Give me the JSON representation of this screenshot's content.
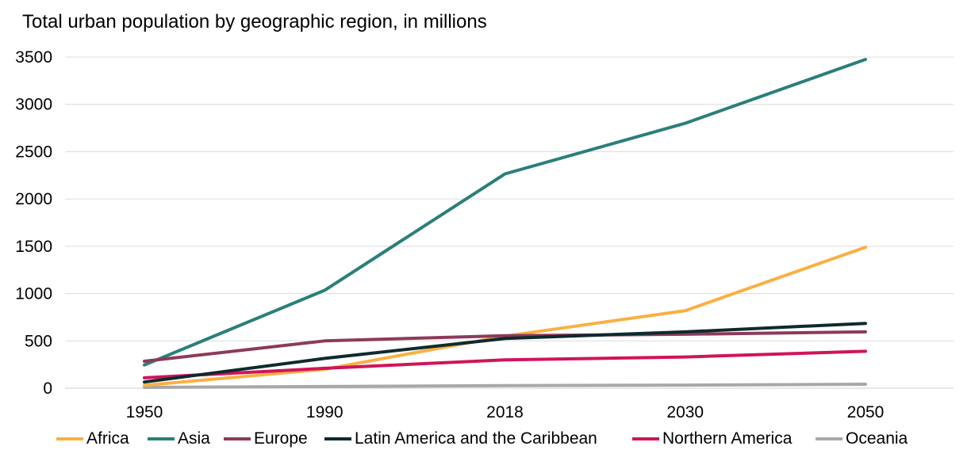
{
  "chart_data": {
    "type": "line",
    "title": "Total urban population by geographic region, in millions",
    "xlabel": "",
    "ylabel": "",
    "categories": [
      "1950",
      "1990",
      "2018",
      "2030",
      "2050"
    ],
    "ylim": [
      0,
      3500
    ],
    "yticks": [
      "0",
      "500",
      "1000",
      "1500",
      "2000",
      "2500",
      "3000",
      "3500"
    ],
    "grid": true,
    "legend_position": "bottom",
    "series": [
      {
        "name": "Africa",
        "color": "#F9B043",
        "values": [
          30,
          200,
          550,
          820,
          1490
        ]
      },
      {
        "name": "Asia",
        "color": "#2A7F79",
        "values": [
          245,
          1035,
          2265,
          2800,
          3475
        ]
      },
      {
        "name": "Europe",
        "color": "#8C3A5B",
        "values": [
          285,
          500,
          555,
          570,
          595
        ]
      },
      {
        "name": "Latin America and the Caribbean",
        "color": "#0E2A2E",
        "values": [
          65,
          315,
          525,
          595,
          685
        ]
      },
      {
        "name": "Northern America",
        "color": "#D0145A",
        "values": [
          110,
          210,
          300,
          330,
          390
        ]
      },
      {
        "name": "Oceania",
        "color": "#A8A8A8",
        "values": [
          8,
          18,
          28,
          33,
          42
        ]
      }
    ]
  }
}
